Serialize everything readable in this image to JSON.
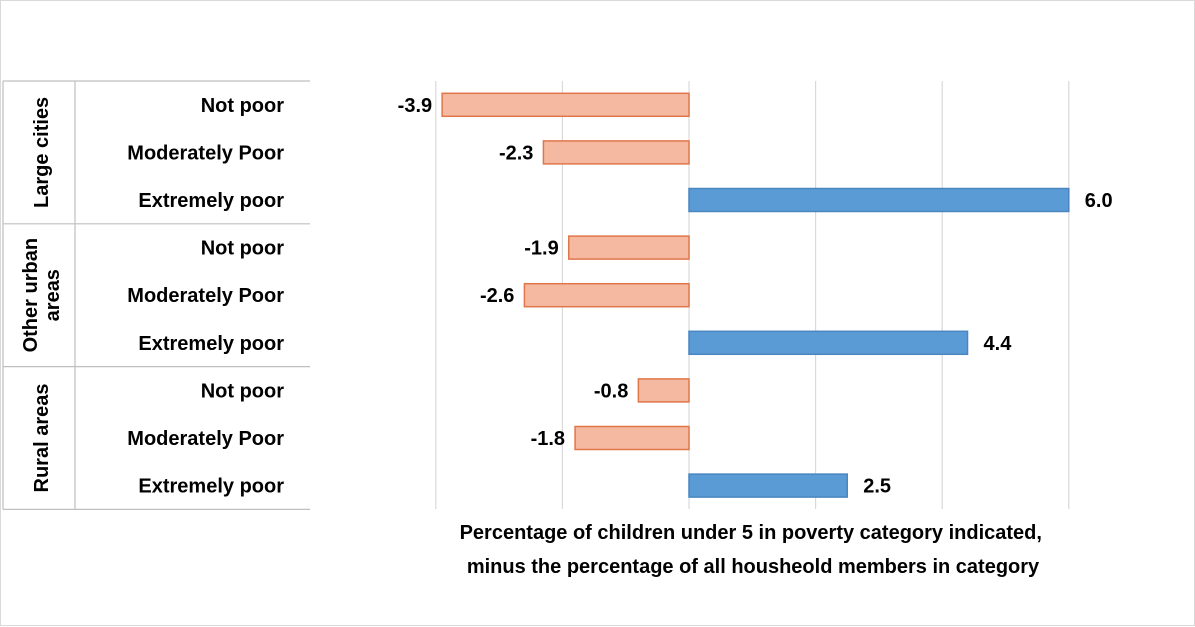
{
  "chart_data": {
    "type": "bar",
    "orientation": "horizontal",
    "xlabel": [
      "Percentage of children under 5 in poverty category indicated,",
      "minus the percentage of all housheold members in category"
    ],
    "ylabel": "",
    "xlim": [
      -5,
      7
    ],
    "grid": true,
    "gridlines_at": [
      -4,
      -2,
      0,
      2,
      4,
      6
    ],
    "tick_labels_shown": false,
    "groups": [
      {
        "name": "Large cities",
        "label_lines": [
          "Large cities"
        ]
      },
      {
        "name": "Other urban areas",
        "label_lines": [
          "Other urban",
          "areas"
        ]
      },
      {
        "name": "Rural areas",
        "label_lines": [
          "Rural areas"
        ]
      }
    ],
    "categories": [
      "Not poor",
      "Moderately Poor",
      "Extremely poor",
      "Not poor",
      "Moderately Poor",
      "Extremely poor",
      "Not poor",
      "Moderately Poor",
      "Extremely poor"
    ],
    "values": [
      -3.9,
      -2.3,
      6.0,
      -1.9,
      -2.6,
      4.4,
      -0.8,
      -1.8,
      2.5
    ],
    "value_labels": [
      "-3.9",
      "-2.3",
      "6.0",
      "-1.9",
      "-2.6",
      "4.4",
      "-0.8",
      "-1.8",
      "2.5"
    ],
    "colors": {
      "negative_fill": "#f4b9a0",
      "negative_stroke": "#e0774b",
      "positive_fill": "#5b9bd5",
      "positive_stroke": "#4a86c0",
      "grid": "#d9d9d9",
      "table_border": "#bfbfbf"
    }
  }
}
